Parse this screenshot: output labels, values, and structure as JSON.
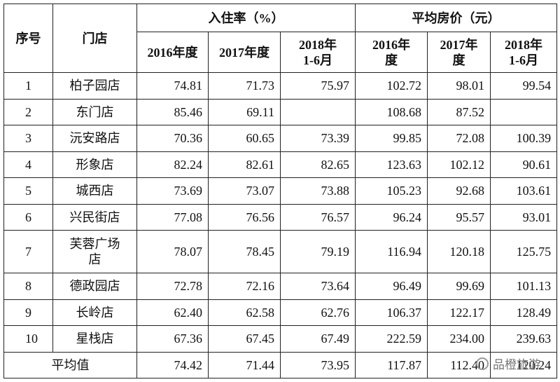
{
  "table": {
    "headers": {
      "index": "序号",
      "store": "门店",
      "occupancy": "入住率（%）",
      "price": "平均房价（元）",
      "years": [
        "2016年度",
        "2017年度",
        "2018年\n1-6月",
        "2016年\n度",
        "2017年\n度",
        "2018年\n1-6月"
      ]
    },
    "rows": [
      [
        "1",
        "柏子园店",
        "74.81",
        "71.73",
        "75.97",
        "102.72",
        "98.01",
        "99.54"
      ],
      [
        "2",
        "东门店",
        "85.46",
        "69.11",
        null,
        "108.68",
        "87.52",
        null
      ],
      [
        "3",
        "沅安路店",
        "70.36",
        "60.65",
        "73.39",
        "99.85",
        "72.08",
        "100.39"
      ],
      [
        "4",
        "形象店",
        "82.24",
        "82.61",
        "82.65",
        "123.63",
        "102.12",
        "90.61"
      ],
      [
        "5",
        "城西店",
        "73.69",
        "73.07",
        "73.88",
        "105.23",
        "92.68",
        "103.61"
      ],
      [
        "6",
        "兴民街店",
        "77.08",
        "76.56",
        "76.57",
        "96.24",
        "95.57",
        "93.01"
      ],
      [
        "7",
        "芙蓉广场店",
        "78.07",
        "78.45",
        "79.19",
        "116.94",
        "120.18",
        "125.75"
      ],
      [
        "8",
        "德政园店",
        "72.78",
        "72.16",
        "73.64",
        "96.49",
        "99.69",
        "101.13"
      ],
      [
        "9",
        "长岭店",
        "62.40",
        "62.58",
        "62.76",
        "106.37",
        "122.17",
        "128.49"
      ],
      [
        "10",
        "星栈店",
        "67.36",
        "67.45",
        "67.49",
        "222.59",
        "234.00",
        "239.63"
      ]
    ],
    "average": {
      "label": "平均值",
      "values": [
        "74.42",
        "71.44",
        "73.95",
        "117.87",
        "112.40",
        "120.24"
      ]
    }
  },
  "watermark": "品橙旅游"
}
